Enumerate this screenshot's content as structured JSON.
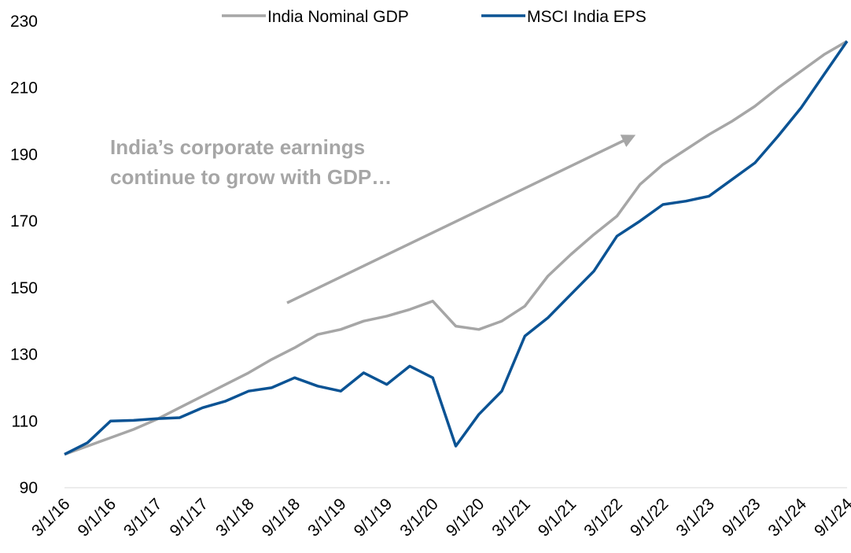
{
  "chart_data": {
    "type": "line",
    "annotation": [
      "India’s corporate earnings",
      "continue to grow with GDP…"
    ],
    "categories": [
      "3/1/16",
      null,
      "9/1/16",
      null,
      "3/1/17",
      null,
      "9/1/17",
      null,
      "3/1/18",
      null,
      "9/1/18",
      null,
      "3/1/19",
      null,
      "9/1/19",
      null,
      "3/1/20",
      null,
      "9/1/20",
      null,
      "3/1/21",
      null,
      "9/1/21",
      null,
      "3/1/22",
      null,
      "9/1/22",
      null,
      "3/1/23",
      null,
      "9/1/23",
      null,
      "3/1/24",
      null,
      "9/1/24"
    ],
    "series": [
      {
        "name": "India Nominal GDP",
        "color": "#a6a6a6",
        "values": [
          100,
          102.5,
          105,
          107.5,
          110.5,
          114,
          117.5,
          121,
          124.5,
          128.5,
          132,
          136,
          137.5,
          140,
          141.5,
          143.5,
          146,
          138.5,
          137.5,
          140,
          144.5,
          153.5,
          160,
          166,
          171.5,
          181,
          187,
          191.5,
          196,
          200,
          204.5,
          210,
          215,
          220,
          224
        ]
      },
      {
        "name": "MSCI India EPS",
        "color": "#0b5394",
        "values": [
          100,
          103.5,
          110,
          110.2,
          110.7,
          111,
          114,
          116,
          119,
          120,
          123,
          120.5,
          119,
          124.5,
          121,
          126.5,
          123,
          102.5,
          112,
          119,
          135.5,
          141,
          148,
          155,
          165.5,
          170,
          175,
          176,
          177.5,
          182.5,
          187.5,
          195.5,
          204,
          214,
          224
        ]
      }
    ],
    "ylim": [
      90,
      230
    ],
    "yticks": [
      90,
      110,
      130,
      150,
      170,
      190,
      210,
      230
    ],
    "legend": "top"
  }
}
